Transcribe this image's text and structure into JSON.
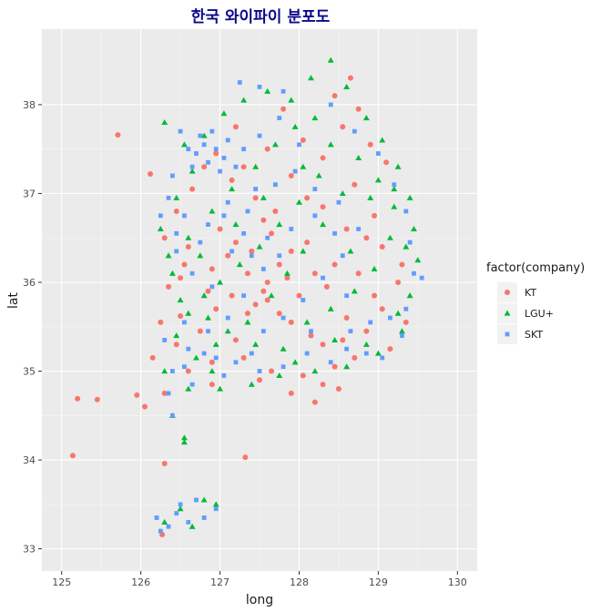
{
  "chart_data": {
    "type": "scatter",
    "title": "한국 와이파이 분포도",
    "xlabel": "long",
    "ylabel": "lat",
    "xlim": [
      124.75,
      130.25
    ],
    "ylim": [
      32.75,
      38.85
    ],
    "x_ticks": [
      125,
      126,
      127,
      128,
      129,
      130
    ],
    "y_ticks": [
      33,
      34,
      35,
      36,
      37,
      38
    ],
    "x_tick_labels": [
      "125",
      "126",
      "127",
      "128",
      "129",
      "130"
    ],
    "y_tick_labels": [
      "33",
      "34",
      "35",
      "36",
      "37",
      "38"
    ],
    "grid": true,
    "legend": {
      "title": "factor(company)",
      "position": "right",
      "entries": [
        {
          "label": "KT",
          "color": "#F8766D",
          "shape": "circle"
        },
        {
          "label": "LGU+",
          "color": "#00BA38",
          "shape": "triangle"
        },
        {
          "label": "SKT",
          "color": "#619CFF",
          "shape": "square"
        }
      ]
    },
    "series": [
      {
        "name": "KT",
        "color": "#F8766D",
        "shape": "circle",
        "points": [
          [
            125.71,
            37.66
          ],
          [
            126.12,
            37.22
          ],
          [
            125.45,
            34.68
          ],
          [
            125.2,
            34.69
          ],
          [
            125.14,
            34.05
          ],
          [
            125.95,
            34.73
          ],
          [
            126.3,
            33.96
          ],
          [
            126.27,
            33.16
          ],
          [
            127.32,
            34.03
          ],
          [
            128.2,
            34.65
          ],
          [
            128.5,
            34.8
          ],
          [
            126.5,
            35.62
          ],
          [
            126.85,
            35.9
          ],
          [
            127.1,
            36.3
          ],
          [
            127.35,
            36.1
          ],
          [
            127.55,
            35.9
          ],
          [
            127.75,
            36.2
          ],
          [
            127.9,
            36.35
          ],
          [
            128.1,
            36.45
          ],
          [
            127.65,
            36.55
          ],
          [
            127.45,
            35.75
          ],
          [
            127.9,
            35.55
          ],
          [
            128.3,
            35.3
          ],
          [
            128.6,
            35.6
          ],
          [
            128.95,
            35.85
          ],
          [
            128.75,
            36.1
          ],
          [
            129.05,
            36.4
          ],
          [
            128.95,
            36.75
          ],
          [
            128.7,
            37.1
          ],
          [
            128.9,
            37.55
          ],
          [
            128.55,
            37.75
          ],
          [
            128.3,
            37.4
          ],
          [
            128.75,
            37.95
          ],
          [
            127.9,
            37.2
          ],
          [
            127.6,
            37.5
          ],
          [
            127.2,
            37.75
          ],
          [
            126.8,
            37.3
          ],
          [
            126.45,
            36.8
          ],
          [
            126.3,
            36.5
          ],
          [
            126.55,
            36.2
          ],
          [
            126.75,
            35.45
          ],
          [
            126.9,
            35.1
          ],
          [
            127.2,
            35.35
          ],
          [
            127.65,
            35.0
          ],
          [
            128.05,
            34.95
          ],
          [
            128.45,
            35.05
          ],
          [
            129.35,
            35.55
          ],
          [
            129.25,
            36.0
          ],
          [
            127.0,
            36.6
          ],
          [
            126.65,
            37.05
          ],
          [
            126.35,
            35.95
          ],
          [
            126.5,
            36.05
          ],
          [
            126.95,
            35.7
          ],
          [
            127.15,
            35.85
          ],
          [
            127.35,
            35.65
          ],
          [
            127.6,
            35.8
          ],
          [
            127.75,
            35.65
          ],
          [
            128.2,
            36.1
          ],
          [
            128.45,
            36.2
          ],
          [
            128.35,
            35.95
          ],
          [
            128.6,
            36.6
          ],
          [
            128.3,
            36.85
          ],
          [
            128.1,
            36.95
          ],
          [
            127.7,
            36.8
          ],
          [
            127.45,
            36.95
          ],
          [
            127.15,
            37.15
          ],
          [
            126.95,
            37.45
          ],
          [
            127.3,
            37.3
          ],
          [
            127.8,
            37.95
          ],
          [
            128.05,
            37.6
          ],
          [
            128.45,
            38.1
          ],
          [
            128.65,
            38.3
          ],
          [
            129.1,
            37.35
          ],
          [
            128.85,
            36.5
          ],
          [
            129.3,
            36.2
          ],
          [
            129.15,
            35.25
          ],
          [
            128.7,
            35.15
          ],
          [
            128.3,
            34.85
          ],
          [
            127.9,
            34.75
          ],
          [
            127.5,
            34.9
          ],
          [
            127.3,
            35.15
          ],
          [
            126.9,
            34.85
          ],
          [
            126.6,
            35.0
          ],
          [
            126.45,
            35.3
          ],
          [
            126.25,
            35.55
          ],
          [
            126.15,
            35.15
          ],
          [
            126.05,
            34.6
          ],
          [
            126.3,
            34.75
          ],
          [
            127.6,
            36.0
          ],
          [
            127.85,
            36.05
          ],
          [
            128.0,
            35.85
          ],
          [
            127.2,
            36.45
          ],
          [
            126.9,
            36.15
          ],
          [
            127.4,
            36.35
          ],
          [
            127.55,
            36.7
          ],
          [
            126.6,
            36.4
          ],
          [
            128.15,
            35.4
          ],
          [
            128.55,
            35.35
          ],
          [
            128.85,
            35.45
          ],
          [
            129.05,
            35.7
          ]
        ]
      },
      {
        "name": "LGU+",
        "color": "#00BA38",
        "shape": "triangle",
        "points": [
          [
            128.4,
            38.5
          ],
          [
            128.6,
            38.2
          ],
          [
            128.85,
            37.85
          ],
          [
            129.05,
            37.6
          ],
          [
            129.25,
            37.3
          ],
          [
            129.4,
            36.95
          ],
          [
            129.45,
            36.6
          ],
          [
            129.5,
            36.25
          ],
          [
            129.4,
            35.85
          ],
          [
            129.3,
            35.45
          ],
          [
            129.0,
            35.2
          ],
          [
            128.6,
            35.05
          ],
          [
            128.2,
            35.0
          ],
          [
            127.75,
            34.95
          ],
          [
            127.4,
            34.85
          ],
          [
            127.0,
            34.8
          ],
          [
            126.6,
            34.8
          ],
          [
            126.4,
            34.5
          ],
          [
            126.55,
            34.2
          ],
          [
            126.3,
            35.0
          ],
          [
            126.45,
            35.4
          ],
          [
            126.6,
            35.65
          ],
          [
            126.8,
            35.85
          ],
          [
            126.35,
            36.3
          ],
          [
            126.25,
            36.6
          ],
          [
            126.45,
            36.95
          ],
          [
            126.65,
            37.25
          ],
          [
            126.55,
            37.55
          ],
          [
            126.3,
            37.8
          ],
          [
            126.8,
            37.65
          ],
          [
            127.05,
            37.9
          ],
          [
            127.3,
            38.05
          ],
          [
            127.6,
            38.15
          ],
          [
            127.9,
            38.05
          ],
          [
            128.2,
            37.85
          ],
          [
            128.4,
            37.55
          ],
          [
            128.25,
            37.2
          ],
          [
            128.0,
            36.9
          ],
          [
            127.75,
            36.65
          ],
          [
            127.5,
            36.4
          ],
          [
            127.25,
            36.2
          ],
          [
            127.0,
            36.0
          ],
          [
            126.85,
            35.6
          ],
          [
            127.1,
            35.45
          ],
          [
            127.45,
            35.3
          ],
          [
            127.8,
            35.25
          ],
          [
            128.1,
            35.55
          ],
          [
            128.4,
            35.7
          ],
          [
            128.7,
            35.9
          ],
          [
            128.95,
            36.15
          ],
          [
            129.15,
            36.5
          ],
          [
            129.2,
            36.85
          ],
          [
            129.0,
            37.15
          ],
          [
            128.75,
            37.4
          ],
          [
            128.55,
            37.0
          ],
          [
            128.3,
            36.65
          ],
          [
            128.05,
            36.35
          ],
          [
            127.85,
            36.1
          ],
          [
            127.65,
            35.85
          ],
          [
            127.35,
            35.55
          ],
          [
            126.95,
            35.3
          ],
          [
            126.7,
            35.15
          ],
          [
            126.5,
            35.8
          ],
          [
            126.6,
            36.5
          ],
          [
            126.9,
            36.8
          ],
          [
            127.15,
            37.05
          ],
          [
            127.45,
            37.3
          ],
          [
            127.7,
            37.55
          ],
          [
            127.95,
            37.75
          ],
          [
            128.15,
            38.3
          ],
          [
            126.5,
            33.45
          ],
          [
            126.8,
            33.55
          ],
          [
            126.95,
            33.5
          ],
          [
            126.3,
            33.3
          ],
          [
            126.65,
            33.25
          ],
          [
            126.55,
            34.25
          ],
          [
            126.9,
            35.0
          ],
          [
            128.85,
            35.3
          ],
          [
            129.25,
            35.65
          ],
          [
            129.35,
            36.4
          ],
          [
            128.05,
            37.3
          ],
          [
            127.55,
            36.95
          ],
          [
            127.2,
            36.65
          ],
          [
            126.75,
            36.3
          ],
          [
            126.4,
            36.1
          ],
          [
            127.95,
            35.1
          ],
          [
            128.45,
            35.35
          ],
          [
            128.65,
            36.35
          ],
          [
            128.9,
            36.95
          ],
          [
            129.2,
            37.05
          ]
        ]
      },
      {
        "name": "SKT",
        "color": "#619CFF",
        "shape": "square",
        "points": [
          [
            126.7,
            37.45
          ],
          [
            126.8,
            37.55
          ],
          [
            126.95,
            37.5
          ],
          [
            127.05,
            37.4
          ],
          [
            126.85,
            37.35
          ],
          [
            126.75,
            37.65
          ],
          [
            126.6,
            37.5
          ],
          [
            127.1,
            37.6
          ],
          [
            126.9,
            37.7
          ],
          [
            126.65,
            37.3
          ],
          [
            127.2,
            37.3
          ],
          [
            127.0,
            37.25
          ],
          [
            126.5,
            37.7
          ],
          [
            127.3,
            37.5
          ],
          [
            127.5,
            37.65
          ],
          [
            127.75,
            37.85
          ],
          [
            128.0,
            37.55
          ],
          [
            127.25,
            38.25
          ],
          [
            127.5,
            38.2
          ],
          [
            127.8,
            38.15
          ],
          [
            128.4,
            38.0
          ],
          [
            128.7,
            37.7
          ],
          [
            129.0,
            37.45
          ],
          [
            129.2,
            37.1
          ],
          [
            129.35,
            36.8
          ],
          [
            129.4,
            36.45
          ],
          [
            129.45,
            36.1
          ],
          [
            129.55,
            36.05
          ],
          [
            129.35,
            35.7
          ],
          [
            129.3,
            35.4
          ],
          [
            129.05,
            35.15
          ],
          [
            128.85,
            35.2
          ],
          [
            128.6,
            35.25
          ],
          [
            128.4,
            35.1
          ],
          [
            128.1,
            35.2
          ],
          [
            127.8,
            35.05
          ],
          [
            127.5,
            35.0
          ],
          [
            127.2,
            35.1
          ],
          [
            126.95,
            35.15
          ],
          [
            126.8,
            35.2
          ],
          [
            126.6,
            35.25
          ],
          [
            126.4,
            35.0
          ],
          [
            126.35,
            34.75
          ],
          [
            126.4,
            34.5
          ],
          [
            126.65,
            34.85
          ],
          [
            126.85,
            35.45
          ],
          [
            127.1,
            35.6
          ],
          [
            127.3,
            35.85
          ],
          [
            127.15,
            36.35
          ],
          [
            127.4,
            36.3
          ],
          [
            127.6,
            36.5
          ],
          [
            127.9,
            36.6
          ],
          [
            128.2,
            36.75
          ],
          [
            128.5,
            36.9
          ],
          [
            128.75,
            36.6
          ],
          [
            128.55,
            36.3
          ],
          [
            128.3,
            36.05
          ],
          [
            128.05,
            35.8
          ],
          [
            127.8,
            35.6
          ],
          [
            127.55,
            35.45
          ],
          [
            127.35,
            36.8
          ],
          [
            127.1,
            36.9
          ],
          [
            126.85,
            36.65
          ],
          [
            126.55,
            36.75
          ],
          [
            126.35,
            36.95
          ],
          [
            126.4,
            37.2
          ],
          [
            126.25,
            36.75
          ],
          [
            126.45,
            36.35
          ],
          [
            126.65,
            36.1
          ],
          [
            126.9,
            35.95
          ],
          [
            128.6,
            35.85
          ],
          [
            128.45,
            36.55
          ],
          [
            128.2,
            37.05
          ],
          [
            127.95,
            37.25
          ],
          [
            127.7,
            37.1
          ],
          [
            127.45,
            37.05
          ],
          [
            126.2,
            33.35
          ],
          [
            126.35,
            33.25
          ],
          [
            126.6,
            33.3
          ],
          [
            126.8,
            33.35
          ],
          [
            126.95,
            33.45
          ],
          [
            126.5,
            33.5
          ],
          [
            126.7,
            33.55
          ],
          [
            126.45,
            33.4
          ],
          [
            126.25,
            33.2
          ],
          [
            128.9,
            35.55
          ],
          [
            129.15,
            35.6
          ],
          [
            128.65,
            35.45
          ],
          [
            128.15,
            35.45
          ],
          [
            127.75,
            36.3
          ],
          [
            127.55,
            36.15
          ],
          [
            127.3,
            36.55
          ],
          [
            127.05,
            36.75
          ],
          [
            126.75,
            36.45
          ],
          [
            126.45,
            36.55
          ],
          [
            126.55,
            35.55
          ],
          [
            126.3,
            35.35
          ],
          [
            126.55,
            35.05
          ],
          [
            127.05,
            34.95
          ],
          [
            127.4,
            35.2
          ]
        ]
      }
    ]
  }
}
